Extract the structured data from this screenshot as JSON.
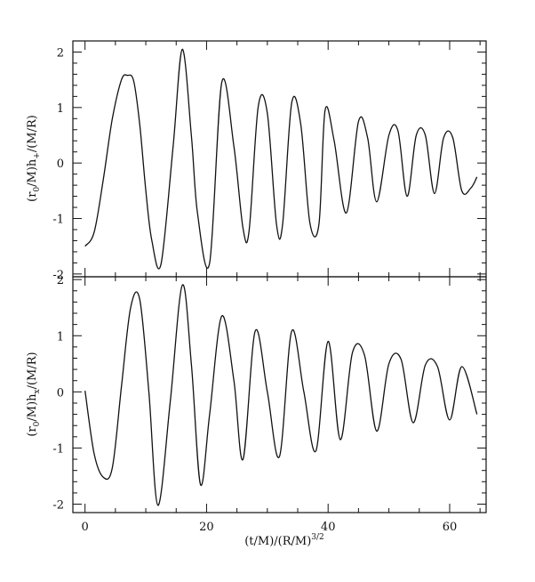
{
  "chart_data": [
    {
      "type": "line",
      "panel": "top",
      "ylabel_main": "(r",
      "ylabel_sub": "0",
      "ylabel_mid": "/M)h",
      "ylabel_sub2": "+",
      "ylabel_end": "/(M/R)",
      "xlim": [
        -2,
        66
      ],
      "ylim": [
        -2.05,
        2.2
      ],
      "yticks": [
        -2,
        -1,
        0,
        1,
        2
      ],
      "series": [
        {
          "x": [
            0.0,
            1.5,
            3.0,
            4.5,
            6.0,
            7.0,
            8.0,
            9.0,
            10.0,
            11.0,
            12.5,
            14.5,
            16.0,
            17.5,
            18.5,
            20.5,
            22.5,
            24.5,
            26.0,
            27.0,
            28.5,
            30.0,
            31.5,
            32.5,
            34.0,
            35.5,
            37.0,
            38.5,
            39.5,
            41.0,
            43.0,
            45.0,
            46.5,
            48.0,
            50.0,
            51.5,
            53.0,
            54.5,
            56.0,
            57.5,
            59.0,
            60.5,
            62.0,
            63.5,
            64.5
          ],
          "y": [
            -1.5,
            -1.25,
            -0.3,
            0.8,
            1.5,
            1.58,
            1.48,
            0.7,
            -0.5,
            -1.4,
            -1.82,
            0.3,
            2.05,
            0.5,
            -0.9,
            -1.8,
            1.45,
            0.3,
            -1.18,
            -1.22,
            1.02,
            0.9,
            -1.1,
            -1.12,
            1.08,
            0.7,
            -1.08,
            -1.1,
            0.95,
            0.4,
            -0.9,
            0.75,
            0.45,
            -0.7,
            0.5,
            0.58,
            -0.6,
            0.5,
            0.5,
            -0.55,
            0.45,
            0.46,
            -0.5,
            -0.45,
            -0.25
          ]
        }
      ]
    },
    {
      "type": "line",
      "panel": "bottom",
      "xlabel": "(t/M)/(R/M)",
      "xlabel_sup": "3/2",
      "ylabel_main": "(r",
      "ylabel_sub": "0",
      "ylabel_mid": "/M)h",
      "ylabel_sub2": "x",
      "ylabel_end": "/(M/R)",
      "xlim": [
        -2,
        66
      ],
      "ylim": [
        -2.15,
        2.05
      ],
      "xticks": [
        0,
        20,
        40,
        60
      ],
      "yticks": [
        -2,
        -1,
        0,
        1,
        2
      ],
      "series": [
        {
          "x": [
            0.0,
            1.5,
            3.0,
            4.5,
            6.0,
            7.5,
            9.0,
            10.5,
            12.0,
            14.0,
            16.0,
            17.5,
            19.0,
            20.5,
            22.5,
            24.5,
            26.0,
            28.0,
            30.0,
            32.0,
            34.0,
            36.0,
            38.0,
            40.0,
            42.0,
            44.0,
            46.0,
            48.0,
            50.0,
            52.0,
            54.0,
            56.0,
            58.0,
            60.0,
            62.0,
            64.5
          ],
          "y": [
            0.02,
            -1.1,
            -1.52,
            -1.35,
            0.1,
            1.5,
            1.65,
            0.0,
            -2.02,
            -0.2,
            1.9,
            0.5,
            -1.65,
            -0.4,
            1.35,
            0.2,
            -1.2,
            1.08,
            0.0,
            -1.15,
            1.08,
            0.0,
            -1.05,
            0.9,
            -0.85,
            0.7,
            0.65,
            -0.7,
            0.5,
            0.58,
            -0.55,
            0.48,
            0.45,
            -0.5,
            0.45,
            -0.4
          ]
        }
      ]
    }
  ]
}
